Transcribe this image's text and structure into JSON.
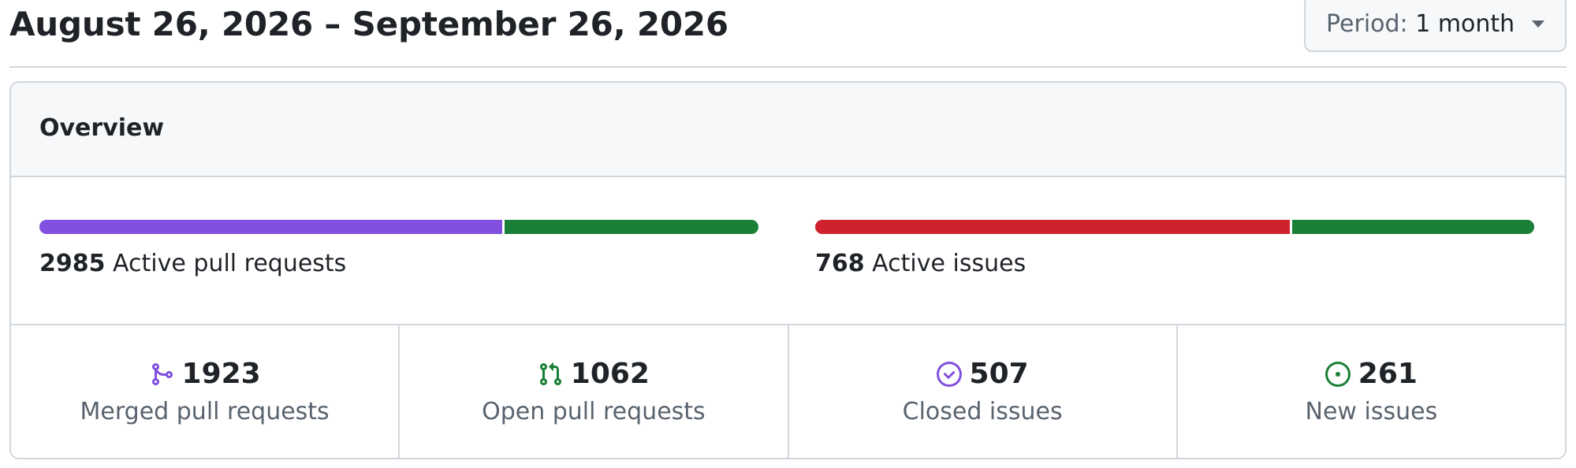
{
  "header": {
    "title": "August 26, 2026 – September 26, 2026",
    "period_key": "Period:",
    "period_value": "1 month"
  },
  "overview": {
    "title": "Overview",
    "pull_requests": {
      "total": "2985",
      "label": "Active pull requests",
      "bar": {
        "merged_fraction": 0.644,
        "open_fraction": 0.356
      },
      "colors": {
        "merged": "#8250df",
        "open": "#1a7f37"
      }
    },
    "issues": {
      "total": "768",
      "label": "Active issues",
      "bar": {
        "closed_fraction": 0.66,
        "new_fraction": 0.34
      },
      "colors": {
        "closed": "#cf222e",
        "new": "#1a7f37"
      }
    },
    "stats": [
      {
        "icon": "git-merge-icon",
        "color": "#8250df",
        "count": "1923",
        "label": "Merged pull requests"
      },
      {
        "icon": "git-pull-request-icon",
        "color": "#1a7f37",
        "count": "1062",
        "label": "Open pull requests"
      },
      {
        "icon": "issue-closed-icon",
        "color": "#8250df",
        "count": "507",
        "label": "Closed issues"
      },
      {
        "icon": "issue-opened-icon",
        "color": "#1a7f37",
        "count": "261",
        "label": "New issues"
      }
    ]
  }
}
